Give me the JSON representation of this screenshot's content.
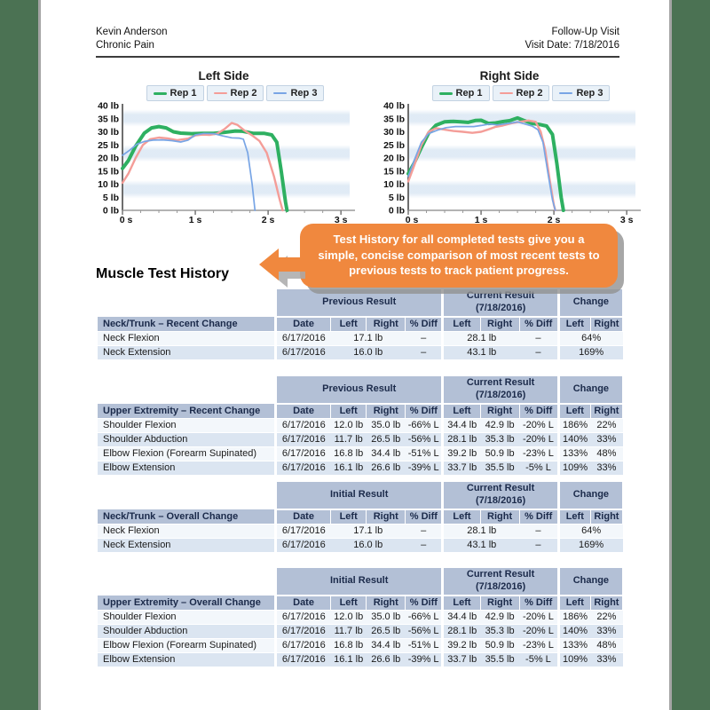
{
  "header": {
    "patient_name": "Kevin Anderson",
    "condition": "Chronic Pain",
    "visit_type": "Follow-Up Visit",
    "visit_date": "Visit Date: 7/18/2016"
  },
  "chart_data": [
    {
      "type": "line",
      "title": "Left Side",
      "xlabel": "seconds",
      "ylabel": "pounds",
      "xlim": [
        0,
        3.12
      ],
      "ylim": [
        0,
        40
      ],
      "grid": "soft horizontal bands",
      "legend_position": "top",
      "x_tick_vals": [
        0,
        1,
        2,
        3
      ],
      "x_tick_labels": [
        "0 s",
        "1 s",
        "2 s",
        "3 s"
      ],
      "y_tick_labels": [
        "0 lb",
        "5 lb",
        "10 lb",
        "15 lb",
        "20 lb",
        "25 lb",
        "30 lb",
        "35 lb",
        "40 lb"
      ],
      "bands": [
        [
          32,
          38.5
        ],
        [
          18.5,
          25
        ],
        [
          4.5,
          11.5
        ]
      ],
      "band_color": "#d9e6f3",
      "series": [
        {
          "name": "Rep 1",
          "color": "#2eb061",
          "width": 4,
          "points": [
            [
              0,
              16
            ],
            [
              0.08,
              19
            ],
            [
              0.18,
              24.5
            ],
            [
              0.3,
              29.5
            ],
            [
              0.4,
              31.5
            ],
            [
              0.5,
              32
            ],
            [
              0.6,
              31.5
            ],
            [
              0.7,
              30
            ],
            [
              0.8,
              29.5
            ],
            [
              0.95,
              29.3
            ],
            [
              1.1,
              29.4
            ],
            [
              1.25,
              29.4
            ],
            [
              1.4,
              29.8
            ],
            [
              1.55,
              30.3
            ],
            [
              1.65,
              30.2
            ],
            [
              1.8,
              29.4
            ],
            [
              1.95,
              29.4
            ],
            [
              2.05,
              28.8
            ],
            [
              2.12,
              26
            ],
            [
              2.18,
              15
            ],
            [
              2.24,
              3
            ],
            [
              2.26,
              0
            ]
          ]
        },
        {
          "name": "Rep 2",
          "color": "#f49d98",
          "width": 2.4,
          "points": [
            [
              0,
              10.5
            ],
            [
              0.08,
              14
            ],
            [
              0.18,
              20
            ],
            [
              0.28,
              25
            ],
            [
              0.38,
              27.2
            ],
            [
              0.5,
              27.8
            ],
            [
              0.62,
              27.5
            ],
            [
              0.75,
              26.8
            ],
            [
              0.9,
              27.4
            ],
            [
              1.0,
              28.6
            ],
            [
              1.1,
              28.9
            ],
            [
              1.2,
              28.8
            ],
            [
              1.3,
              29.3
            ],
            [
              1.4,
              31
            ],
            [
              1.5,
              33.4
            ],
            [
              1.58,
              32.6
            ],
            [
              1.68,
              30.4
            ],
            [
              1.78,
              28.6
            ],
            [
              1.88,
              26.5
            ],
            [
              1.98,
              22
            ],
            [
              2.08,
              13
            ],
            [
              2.16,
              4
            ],
            [
              2.2,
              0
            ]
          ]
        },
        {
          "name": "Rep 3",
          "color": "#78a5e5",
          "width": 1.7,
          "points": [
            [
              0,
              21
            ],
            [
              0.1,
              23
            ],
            [
              0.2,
              25.3
            ],
            [
              0.3,
              26.3
            ],
            [
              0.42,
              26.8
            ],
            [
              0.55,
              26.9
            ],
            [
              0.68,
              26.6
            ],
            [
              0.8,
              26.1
            ],
            [
              0.9,
              26.8
            ],
            [
              1.0,
              28.8
            ],
            [
              1.12,
              29.4
            ],
            [
              1.25,
              29.3
            ],
            [
              1.38,
              28.4
            ],
            [
              1.5,
              27.7
            ],
            [
              1.6,
              27.6
            ],
            [
              1.66,
              27.2
            ],
            [
              1.72,
              22
            ],
            [
              1.78,
              10
            ],
            [
              1.82,
              0
            ]
          ]
        }
      ]
    },
    {
      "type": "line",
      "title": "Right Side",
      "xlabel": "seconds",
      "ylabel": "pounds",
      "xlim": [
        0,
        3.12
      ],
      "ylim": [
        0,
        40
      ],
      "grid": "soft horizontal bands",
      "legend_position": "top",
      "x_tick_vals": [
        0,
        1,
        2,
        3
      ],
      "x_tick_labels": [
        "0 s",
        "1 s",
        "2 s",
        "3 s"
      ],
      "y_tick_labels": [
        "0 lb",
        "5 lb",
        "10 lb",
        "15 lb",
        "20 lb",
        "25 lb",
        "30 lb",
        "35 lb",
        "40 lb"
      ],
      "bands": [
        [
          32,
          38.5
        ],
        [
          18.5,
          25
        ],
        [
          4.5,
          11.5
        ]
      ],
      "band_color": "#d9e6f3",
      "series": [
        {
          "name": "Rep 1",
          "color": "#2eb061",
          "width": 4,
          "points": [
            [
              0,
              14
            ],
            [
              0.08,
              18
            ],
            [
              0.18,
              24
            ],
            [
              0.28,
              29.5
            ],
            [
              0.38,
              32.5
            ],
            [
              0.5,
              33.8
            ],
            [
              0.62,
              34
            ],
            [
              0.72,
              33.8
            ],
            [
              0.82,
              33.6
            ],
            [
              0.92,
              34.3
            ],
            [
              1.0,
              34.4
            ],
            [
              1.1,
              33.2
            ],
            [
              1.2,
              33.4
            ],
            [
              1.3,
              33.9
            ],
            [
              1.4,
              34.3
            ],
            [
              1.5,
              35.3
            ],
            [
              1.58,
              34.4
            ],
            [
              1.7,
              33.2
            ],
            [
              1.8,
              32.8
            ],
            [
              1.9,
              32.2
            ],
            [
              1.98,
              29
            ],
            [
              2.04,
              18
            ],
            [
              2.1,
              5
            ],
            [
              2.13,
              0
            ]
          ]
        },
        {
          "name": "Rep 2",
          "color": "#f49d98",
          "width": 2.4,
          "points": [
            [
              0,
              11
            ],
            [
              0.08,
              17
            ],
            [
              0.18,
              25
            ],
            [
              0.28,
              30
            ],
            [
              0.38,
              31.4
            ],
            [
              0.5,
              30.8
            ],
            [
              0.62,
              30.3
            ],
            [
              0.75,
              30
            ],
            [
              0.88,
              29.6
            ],
            [
              1.0,
              30
            ],
            [
              1.1,
              30.9
            ],
            [
              1.2,
              31.9
            ],
            [
              1.3,
              32.4
            ],
            [
              1.42,
              33.3
            ],
            [
              1.55,
              33.9
            ],
            [
              1.65,
              34.3
            ],
            [
              1.75,
              33.8
            ],
            [
              1.82,
              30
            ],
            [
              1.88,
              23
            ],
            [
              1.94,
              12
            ],
            [
              2.0,
              2
            ],
            [
              2.02,
              0
            ]
          ]
        },
        {
          "name": "Rep 3",
          "color": "#78a5e5",
          "width": 1.7,
          "points": [
            [
              0,
              13
            ],
            [
              0.08,
              19
            ],
            [
              0.18,
              26
            ],
            [
              0.28,
              29.3
            ],
            [
              0.4,
              30.6
            ],
            [
              0.52,
              31.6
            ],
            [
              0.65,
              32
            ],
            [
              0.78,
              32
            ],
            [
              0.9,
              32
            ],
            [
              1.0,
              32.4
            ],
            [
              1.12,
              33
            ],
            [
              1.22,
              32.6
            ],
            [
              1.32,
              33
            ],
            [
              1.42,
              33.4
            ],
            [
              1.5,
              33.8
            ],
            [
              1.6,
              33
            ],
            [
              1.7,
              32.2
            ],
            [
              1.78,
              30.8
            ],
            [
              1.85,
              26
            ],
            [
              1.92,
              14
            ],
            [
              1.98,
              4
            ],
            [
              2.02,
              0
            ]
          ]
        }
      ]
    }
  ],
  "callout": {
    "text": "Test History for all completed tests give you a simple, concise comparison of most recent tests to previous tests to track patient progress."
  },
  "section_title": "Muscle Test History",
  "tables": [
    {
      "group_cols": [
        "Previous Result",
        "Current Result\n(7/18/2016)",
        "Change"
      ],
      "title": "Neck/Trunk – Recent Change",
      "columns": [
        "Date",
        "Left",
        "Right",
        "% Diff",
        "Left",
        "Right",
        "% Diff",
        "Left",
        "Right"
      ],
      "rows": [
        [
          "Neck Flexion",
          "6/17/2016",
          {
            "t": "17.1 lb",
            "cs": 2
          },
          "–",
          {
            "t": "28.1 lb",
            "cs": 2
          },
          "–",
          {
            "t": "64%",
            "cs": 2
          }
        ],
        [
          "Neck Extension",
          "6/17/2016",
          {
            "t": "16.0 lb",
            "cs": 2
          },
          "–",
          {
            "t": "43.1 lb",
            "cs": 2
          },
          "–",
          {
            "t": "169%",
            "cs": 2
          }
        ]
      ]
    },
    {
      "group_cols": [
        "Previous Result",
        "Current Result\n(7/18/2016)",
        "Change"
      ],
      "title": "Upper Extremity – Recent Change",
      "columns": [
        "Date",
        "Left",
        "Right",
        "% Diff",
        "Left",
        "Right",
        "% Diff",
        "Left",
        "Right"
      ],
      "rows": [
        [
          "Shoulder Flexion",
          "6/17/2016",
          "12.0 lb",
          "35.0 lb",
          "-66% L",
          "34.4 lb",
          "42.9 lb",
          "-20% L",
          "186%",
          "22%"
        ],
        [
          "Shoulder Abduction",
          "6/17/2016",
          "11.7 lb",
          "26.5 lb",
          "-56% L",
          "28.1 lb",
          "35.3 lb",
          "-20% L",
          "140%",
          "33%"
        ],
        [
          "Elbow Flexion (Forearm Supinated)",
          "6/17/2016",
          "16.8 lb",
          "34.4 lb",
          "-51% L",
          "39.2 lb",
          "50.9 lb",
          "-23% L",
          "133%",
          "48%"
        ],
        [
          "Elbow Extension",
          "6/17/2016",
          "16.1 lb",
          "26.6 lb",
          "-39% L",
          "33.7 lb",
          "35.5 lb",
          "-5% L",
          "109%",
          "33%"
        ]
      ]
    },
    {
      "group_cols": [
        "Initial Result",
        "Current Result\n(7/18/2016)",
        "Change"
      ],
      "title": "Neck/Trunk – Overall Change",
      "columns": [
        "Date",
        "Left",
        "Right",
        "% Diff",
        "Left",
        "Right",
        "% Diff",
        "Left",
        "Right"
      ],
      "rows": [
        [
          "Neck Flexion",
          "6/17/2016",
          {
            "t": "17.1 lb",
            "cs": 2
          },
          "–",
          {
            "t": "28.1 lb",
            "cs": 2
          },
          "–",
          {
            "t": "64%",
            "cs": 2
          }
        ],
        [
          "Neck Extension",
          "6/17/2016",
          {
            "t": "16.0 lb",
            "cs": 2
          },
          "–",
          {
            "t": "43.1 lb",
            "cs": 2
          },
          "–",
          {
            "t": "169%",
            "cs": 2
          }
        ]
      ]
    },
    {
      "group_cols": [
        "Initial Result",
        "Current Result\n(7/18/2016)",
        "Change"
      ],
      "title": "Upper Extremity – Overall Change",
      "columns": [
        "Date",
        "Left",
        "Right",
        "% Diff",
        "Left",
        "Right",
        "% Diff",
        "Left",
        "Right"
      ],
      "rows": [
        [
          "Shoulder Flexion",
          "6/17/2016",
          "12.0 lb",
          "35.0 lb",
          "-66% L",
          "34.4 lb",
          "42.9 lb",
          "-20% L",
          "186%",
          "22%"
        ],
        [
          "Shoulder Abduction",
          "6/17/2016",
          "11.7 lb",
          "26.5 lb",
          "-56% L",
          "28.1 lb",
          "35.3 lb",
          "-20% L",
          "140%",
          "33%"
        ],
        [
          "Elbow Flexion (Forearm Supinated)",
          "6/17/2016",
          "16.8 lb",
          "34.4 lb",
          "-51% L",
          "39.2 lb",
          "50.9 lb",
          "-23% L",
          "133%",
          "48%"
        ],
        [
          "Elbow Extension",
          "6/17/2016",
          "16.1 lb",
          "26.6 lb",
          "-39% L",
          "33.7 lb",
          "35.5 lb",
          "-5% L",
          "109%",
          "33%"
        ]
      ]
    }
  ],
  "colors": {
    "desktop_bg": "#4b7253",
    "page_edge": "#a5a5a5",
    "callout_orange": "#f0883e",
    "table_header": "#b3c0d6",
    "row_base": "#f3f7fb",
    "row_alt": "#dbe5f1",
    "series_rep1": "#2eb061",
    "series_rep2": "#f49d98",
    "series_rep3": "#78a5e5"
  }
}
